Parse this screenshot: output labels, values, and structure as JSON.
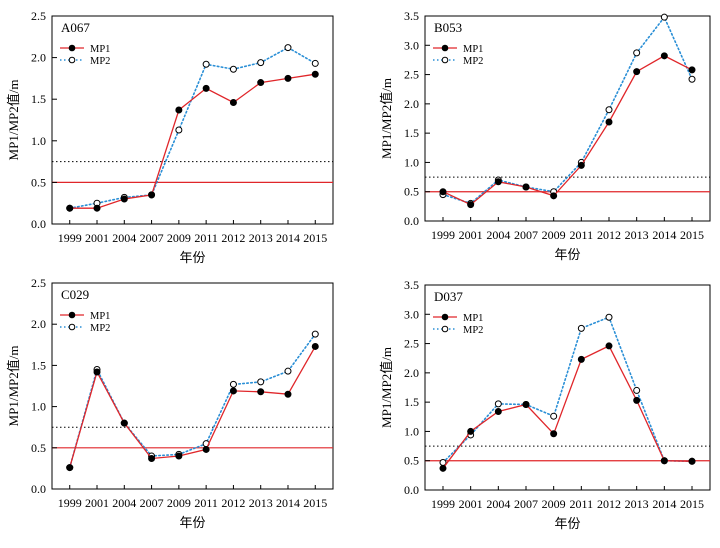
{
  "chart_data": [
    {
      "type": "line",
      "title": "A067",
      "xlabel": "年份",
      "ylabel": "MP1/MP2值/m",
      "categories": [
        "1999",
        "2001",
        "2004",
        "2007",
        "2009",
        "2011",
        "2012",
        "2013",
        "2014",
        "2015"
      ],
      "ylim": [
        0,
        2.5
      ],
      "yticks": [
        "0.0",
        "0.5",
        "1.0",
        "1.5",
        "2.0",
        "2.5"
      ],
      "ref_solid": 0.5,
      "ref_dotted": 0.75,
      "legend_position": "top-left",
      "series": [
        {
          "name": "MP1",
          "values": [
            0.19,
            0.19,
            0.3,
            0.35,
            1.37,
            1.63,
            1.46,
            1.7,
            1.75,
            1.8
          ]
        },
        {
          "name": "MP2",
          "values": [
            0.19,
            0.25,
            0.32,
            0.35,
            1.13,
            1.92,
            1.86,
            1.94,
            2.12,
            1.93
          ]
        }
      ]
    },
    {
      "type": "line",
      "title": "B053",
      "xlabel": "年份",
      "ylabel": "MP1/MP2值/m",
      "categories": [
        "1999",
        "2001",
        "2004",
        "2007",
        "2009",
        "2011",
        "2012",
        "2013",
        "2014",
        "2015"
      ],
      "ylim": [
        0,
        3.5
      ],
      "yticks": [
        "0.0",
        "0.5",
        "1.0",
        "1.5",
        "2.0",
        "2.5",
        "3.0",
        "3.5"
      ],
      "ref_solid": 0.5,
      "ref_dotted": 0.75,
      "legend_position": "top-left",
      "series": [
        {
          "name": "MP1",
          "values": [
            0.5,
            0.28,
            0.67,
            0.58,
            0.43,
            0.95,
            1.69,
            2.55,
            2.82,
            2.58
          ]
        },
        {
          "name": "MP2",
          "values": [
            0.45,
            0.3,
            0.7,
            0.58,
            0.5,
            1.0,
            1.9,
            2.87,
            3.48,
            2.42
          ]
        }
      ]
    },
    {
      "type": "line",
      "title": "C029",
      "xlabel": "年份",
      "ylabel": "MP1/MP2值/m",
      "categories": [
        "1999",
        "2001",
        "2004",
        "2007",
        "2009",
        "2011",
        "2012",
        "2013",
        "2014",
        "2015"
      ],
      "ylim": [
        0,
        2.5
      ],
      "yticks": [
        "0.0",
        "0.5",
        "1.0",
        "1.5",
        "2.0",
        "2.5"
      ],
      "ref_solid": 0.5,
      "ref_dotted": 0.75,
      "legend_position": "top-left",
      "series": [
        {
          "name": "MP1",
          "values": [
            0.26,
            1.42,
            0.8,
            0.37,
            0.4,
            0.48,
            1.19,
            1.18,
            1.15,
            1.73
          ]
        },
        {
          "name": "MP2",
          "values": [
            0.26,
            1.45,
            0.8,
            0.4,
            0.42,
            0.55,
            1.27,
            1.3,
            1.43,
            1.88
          ]
        }
      ]
    },
    {
      "type": "line",
      "title": "D037",
      "xlabel": "年份",
      "ylabel": "MP1/MP2值/m",
      "categories": [
        "1999",
        "2001",
        "2004",
        "2007",
        "2009",
        "2011",
        "2012",
        "2013",
        "2014",
        "2015"
      ],
      "ylim": [
        0,
        3.5
      ],
      "yticks": [
        "0.0",
        "0.5",
        "1.0",
        "1.5",
        "2.0",
        "2.5",
        "3.0",
        "3.5"
      ],
      "ref_solid": 0.5,
      "ref_dotted": 0.75,
      "legend_position": "top-left",
      "series": [
        {
          "name": "MP1",
          "values": [
            0.37,
            1.0,
            1.34,
            1.46,
            0.96,
            2.23,
            2.46,
            1.53,
            0.5,
            0.49
          ]
        },
        {
          "name": "MP2",
          "values": [
            0.47,
            0.94,
            1.47,
            1.46,
            1.26,
            2.76,
            2.95,
            1.7,
            0.5,
            0.49
          ]
        }
      ]
    }
  ],
  "colors": {
    "mp1": "#e0262a",
    "mp2": "#2a8fd6",
    "ref_solid": "#e0262a",
    "ref_dotted": "#000000",
    "axis": "#000000"
  }
}
